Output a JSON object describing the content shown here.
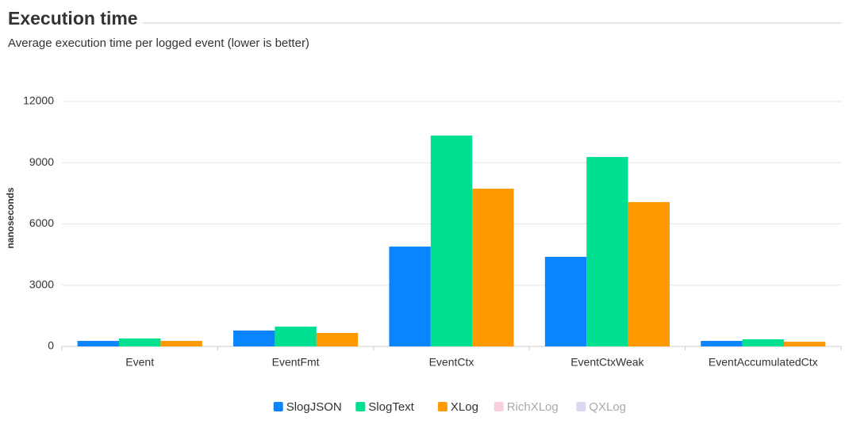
{
  "chart_data": {
    "type": "bar",
    "title": "Execution time",
    "subtitle": "Average execution time per logged event (lower is better)",
    "y_label": "nanoseconds",
    "categories": [
      "Event",
      "EventFmt",
      "EventCtx",
      "EventCtxWeak",
      "EventAccumulatedCtx"
    ],
    "series": [
      {
        "name": "SlogJSON",
        "color": "#0a84ff",
        "values": [
          270,
          780,
          4890,
          4390,
          270
        ]
      },
      {
        "name": "SlogText",
        "color": "#00e090",
        "values": [
          390,
          970,
          10330,
          9280,
          350
        ]
      },
      {
        "name": "XLog",
        "color": "#ff9900",
        "values": [
          270,
          660,
          7730,
          7070,
          230
        ]
      },
      {
        "name": "RichXLog",
        "color": "#f8d0dc",
        "visible": false,
        "values": [
          null,
          null,
          null,
          null,
          null
        ]
      },
      {
        "name": "QXLog",
        "color": "#dcd8f2",
        "visible": false,
        "values": [
          null,
          null,
          null,
          null,
          null
        ]
      }
    ],
    "ylim": [
      0,
      12000
    ],
    "yticks": [
      0,
      3000,
      6000,
      9000,
      12000
    ],
    "grid": true,
    "legend": "bottom"
  }
}
